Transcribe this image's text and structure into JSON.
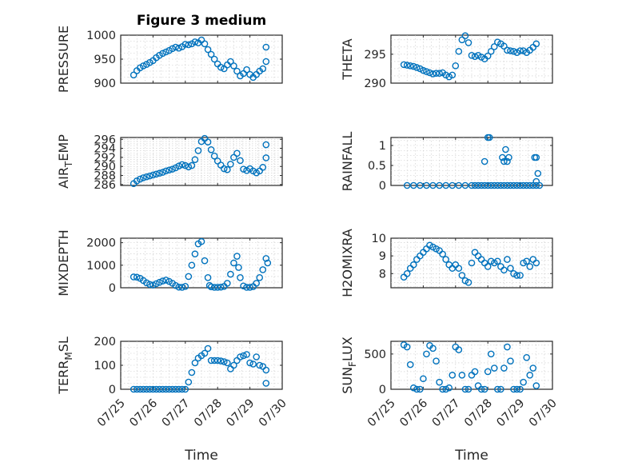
{
  "figure": {
    "title": "Figure 3 medium",
    "marker_color": "#0072BD",
    "x_tick_labels": [
      "07/25",
      "07/26",
      "07/27",
      "07/28",
      "07/29",
      "07/30"
    ]
  },
  "chart_data": [
    {
      "type": "scatter",
      "panel": "PRESSURE",
      "title": "Figure 3 medium",
      "xlabel": "",
      "ylabel": "PRESSURE",
      "xlim": [
        0,
        5
      ],
      "ylim": [
        900,
        1000
      ],
      "yticks": [
        900,
        950,
        1000
      ],
      "grid": true,
      "x": [
        0.4,
        0.5,
        0.6,
        0.7,
        0.8,
        0.9,
        1.0,
        1.1,
        1.2,
        1.3,
        1.4,
        1.5,
        1.6,
        1.7,
        1.8,
        1.9,
        2.0,
        2.1,
        2.2,
        2.3,
        2.4,
        2.5,
        2.6,
        2.7,
        2.8,
        2.9,
        3.0,
        3.1,
        3.2,
        3.3,
        3.4,
        3.5,
        3.6,
        3.7,
        3.8,
        3.9,
        4.0,
        4.1,
        4.2,
        4.3,
        4.4,
        4.5,
        4.5
      ],
      "y": [
        917,
        926,
        932,
        936,
        939,
        943,
        947,
        953,
        958,
        962,
        965,
        968,
        972,
        975,
        973,
        976,
        981,
        980,
        982,
        986,
        984,
        990,
        982,
        970,
        960,
        950,
        940,
        933,
        930,
        938,
        945,
        936,
        925,
        915,
        920,
        928,
        918,
        912,
        918,
        925,
        930,
        945,
        975
      ]
    },
    {
      "type": "scatter",
      "panel": "THETA",
      "xlabel": "",
      "ylabel": "THETA",
      "xlim": [
        0,
        5
      ],
      "ylim": [
        290,
        298.3
      ],
      "yticks": [
        290,
        295
      ],
      "grid": true,
      "x": [
        0.4,
        0.5,
        0.6,
        0.7,
        0.8,
        0.9,
        1.0,
        1.1,
        1.2,
        1.3,
        1.4,
        1.5,
        1.6,
        1.7,
        1.8,
        1.9,
        2.0,
        2.1,
        2.2,
        2.3,
        2.4,
        2.5,
        2.6,
        2.7,
        2.8,
        2.9,
        3.0,
        3.1,
        3.2,
        3.3,
        3.4,
        3.5,
        3.6,
        3.7,
        3.8,
        3.9,
        4.0,
        4.1,
        4.2,
        4.3,
        4.4,
        4.5
      ],
      "y": [
        293.2,
        293.1,
        293.0,
        292.9,
        292.7,
        292.5,
        292.2,
        292.0,
        291.8,
        291.6,
        291.7,
        291.7,
        291.8,
        291.4,
        291.1,
        291.4,
        293,
        295.5,
        297.5,
        298.2,
        297,
        294.8,
        294.6,
        294.8,
        294.5,
        294.2,
        294.7,
        295.5,
        296.3,
        297.1,
        296.8,
        296.4,
        295.7,
        295.6,
        295.5,
        295.3,
        295.6,
        295.6,
        295.3,
        295.7,
        296.2,
        296.8
      ]
    },
    {
      "type": "scatter",
      "panel": "AIR_TEMP",
      "xlabel": "",
      "ylabel": "AIR_TEMP",
      "xlim": [
        0,
        5
      ],
      "ylim": [
        285.8,
        296.4
      ],
      "yticks": [
        286,
        288,
        290,
        292,
        294,
        296
      ],
      "grid": true,
      "x": [
        0.4,
        0.5,
        0.6,
        0.7,
        0.8,
        0.9,
        1.0,
        1.1,
        1.2,
        1.3,
        1.4,
        1.5,
        1.6,
        1.7,
        1.8,
        1.9,
        2.0,
        2.1,
        2.2,
        2.3,
        2.4,
        2.5,
        2.6,
        2.7,
        2.8,
        2.9,
        3.0,
        3.1,
        3.2,
        3.3,
        3.4,
        3.5,
        3.6,
        3.7,
        3.8,
        3.9,
        4.0,
        4.1,
        4.2,
        4.3,
        4.4,
        4.5,
        4.5
      ],
      "y": [
        286.2,
        286.8,
        287.2,
        287.5,
        287.7,
        287.9,
        288.1,
        288.3,
        288.5,
        288.7,
        289.0,
        289.2,
        289.4,
        289.7,
        290.1,
        290.4,
        290.2,
        289.9,
        290.2,
        291.5,
        293.5,
        295.5,
        296.2,
        295.4,
        293.7,
        292.3,
        291.2,
        290.3,
        289.5,
        289.3,
        290.5,
        292,
        292.9,
        291.3,
        289.4,
        289.1,
        289.5,
        289.0,
        288.6,
        289,
        289.8,
        291.9,
        294.8
      ]
    },
    {
      "type": "scatter",
      "panel": "RAINFALL",
      "xlabel": "",
      "ylabel": "RAINFALL",
      "xlim": [
        0,
        5
      ],
      "ylim": [
        0,
        1.2
      ],
      "yticks": [
        0,
        0.5,
        1
      ],
      "grid": true,
      "x": [
        0.5,
        0.7,
        0.9,
        1.1,
        1.3,
        1.5,
        1.7,
        1.9,
        2.1,
        2.3,
        2.5,
        2.6,
        2.7,
        2.8,
        2.9,
        3.0,
        3.1,
        3.2,
        3.3,
        3.4,
        3.5,
        3.6,
        3.7,
        3.8,
        3.9,
        4.0,
        4.1,
        4.2,
        4.3,
        4.4,
        4.5,
        4.6,
        2.9,
        3.0,
        3.05,
        3.45,
        3.5,
        3.6,
        3.55,
        3.65,
        4.45,
        4.5,
        4.55,
        4.5
      ],
      "y": [
        0,
        0,
        0,
        0,
        0,
        0,
        0,
        0,
        0,
        0,
        0,
        0,
        0,
        0,
        0,
        0,
        0,
        0,
        0,
        0,
        0,
        0,
        0,
        0,
        0,
        0,
        0,
        0,
        0,
        0,
        0,
        0,
        0.6,
        1.2,
        1.2,
        0.7,
        0.6,
        0.6,
        0.9,
        0.7,
        0.7,
        0.7,
        0.3,
        0.1
      ]
    },
    {
      "type": "scatter",
      "panel": "MIXDEPTH",
      "xlabel": "",
      "ylabel": "MIXDEPTH",
      "xlim": [
        0,
        5
      ],
      "ylim": [
        0,
        2200
      ],
      "yticks": [
        0,
        1000,
        2000
      ],
      "grid": true,
      "x": [
        0.4,
        0.5,
        0.6,
        0.7,
        0.8,
        0.9,
        1.0,
        1.1,
        1.2,
        1.3,
        1.4,
        1.5,
        1.6,
        1.7,
        1.8,
        1.9,
        2.0,
        2.1,
        2.2,
        2.3,
        2.4,
        2.5,
        2.6,
        2.7,
        2.75,
        2.8,
        2.9,
        3.0,
        3.1,
        3.2,
        3.3,
        3.4,
        3.5,
        3.6,
        3.65,
        3.7,
        3.8,
        3.9,
        4.0,
        4.1,
        4.2,
        4.3,
        4.4,
        4.5,
        4.55
      ],
      "y": [
        480,
        470,
        420,
        320,
        220,
        150,
        120,
        180,
        240,
        300,
        340,
        280,
        200,
        100,
        30,
        20,
        60,
        500,
        1000,
        1500,
        1950,
        2050,
        1200,
        450,
        100,
        40,
        20,
        20,
        30,
        60,
        200,
        600,
        1100,
        1400,
        900,
        450,
        80,
        20,
        20,
        50,
        200,
        450,
        800,
        1300,
        1100
      ]
    },
    {
      "type": "scatter",
      "panel": "H2OMIXRA",
      "xlabel": "",
      "ylabel": "H2OMIXRA",
      "xlim": [
        0,
        5
      ],
      "ylim": [
        7.2,
        10
      ],
      "yticks": [
        8,
        9,
        10
      ],
      "grid": true,
      "x": [
        0.4,
        0.5,
        0.6,
        0.7,
        0.8,
        0.9,
        1.0,
        1.1,
        1.2,
        1.3,
        1.4,
        1.5,
        1.6,
        1.7,
        1.8,
        1.9,
        2.0,
        2.1,
        2.2,
        2.3,
        2.4,
        2.5,
        2.6,
        2.7,
        2.8,
        2.9,
        3.0,
        3.1,
        3.2,
        3.3,
        3.4,
        3.5,
        3.6,
        3.7,
        3.8,
        3.9,
        4.0,
        4.1,
        4.2,
        4.3,
        4.4,
        4.5
      ],
      "y": [
        7.8,
        8.0,
        8.3,
        8.5,
        8.8,
        9.0,
        9.2,
        9.4,
        9.6,
        9.5,
        9.4,
        9.3,
        9.1,
        8.8,
        8.5,
        8.3,
        8.5,
        8.3,
        7.9,
        7.6,
        7.5,
        8.6,
        9.2,
        9.0,
        8.8,
        8.6,
        8.4,
        8.7,
        8.6,
        8.7,
        8.4,
        8.2,
        8.8,
        8.3,
        8.0,
        7.9,
        7.9,
        8.6,
        8.7,
        8.4,
        8.8,
        8.6
      ]
    },
    {
      "type": "scatter",
      "panel": "TERR_MSL",
      "xlabel": "Time",
      "ylabel": "TERR_MSL",
      "xlim": [
        0,
        5
      ],
      "ylim": [
        0,
        200
      ],
      "yticks": [
        0,
        100,
        200
      ],
      "grid": true,
      "x": [
        0.4,
        0.5,
        0.6,
        0.7,
        0.8,
        0.9,
        1.0,
        1.1,
        1.2,
        1.3,
        1.4,
        1.5,
        1.6,
        1.7,
        1.8,
        1.9,
        2.0,
        2.1,
        2.2,
        2.3,
        2.4,
        2.5,
        2.6,
        2.7,
        2.8,
        2.9,
        3.0,
        3.1,
        3.2,
        3.3,
        3.4,
        3.5,
        3.6,
        3.7,
        3.8,
        3.9,
        4.0,
        4.1,
        4.2,
        4.3,
        4.4,
        4.5,
        4.5
      ],
      "y": [
        0,
        0,
        0,
        0,
        0,
        0,
        0,
        0,
        0,
        0,
        0,
        0,
        0,
        0,
        0,
        0,
        0,
        30,
        70,
        110,
        130,
        140,
        150,
        170,
        120,
        120,
        120,
        118,
        115,
        110,
        85,
        100,
        120,
        135,
        140,
        145,
        110,
        105,
        135,
        100,
        95,
        80,
        25
      ]
    },
    {
      "type": "scatter",
      "panel": "SUN_FLUX",
      "xlabel": "Time",
      "ylabel": "SUN_FLUX",
      "xlim": [
        0,
        5
      ],
      "ylim": [
        0,
        680
      ],
      "yticks": [
        0,
        500
      ],
      "grid": true,
      "x": [
        0.4,
        0.5,
        0.6,
        0.7,
        0.8,
        0.9,
        1.0,
        1.1,
        1.2,
        1.3,
        1.4,
        1.5,
        1.6,
        1.7,
        1.8,
        1.9,
        2.0,
        2.1,
        2.2,
        2.3,
        2.4,
        2.5,
        2.6,
        2.7,
        2.8,
        2.9,
        3.0,
        3.1,
        3.2,
        3.3,
        3.4,
        3.5,
        3.6,
        3.7,
        3.8,
        3.9,
        4.0,
        4.1,
        4.2,
        4.3,
        4.4,
        4.5
      ],
      "y": [
        630,
        600,
        350,
        20,
        0,
        0,
        150,
        500,
        620,
        580,
        400,
        100,
        0,
        0,
        20,
        200,
        600,
        560,
        200,
        0,
        0,
        200,
        250,
        50,
        0,
        0,
        250,
        500,
        300,
        0,
        0,
        300,
        600,
        400,
        0,
        0,
        0,
        100,
        450,
        200,
        300,
        50
      ]
    }
  ]
}
